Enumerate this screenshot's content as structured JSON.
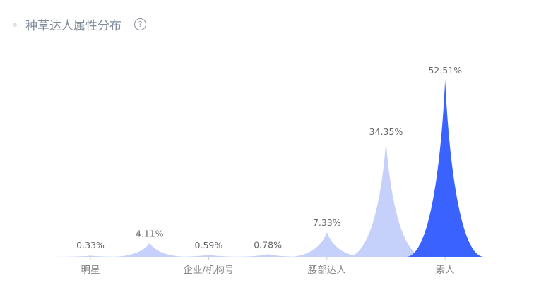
{
  "header": {
    "title": "种草达人属性分布",
    "help_icon": "question-circle-icon"
  },
  "chart_data": {
    "type": "pictorial-bar",
    "title": "种草达人属性分布",
    "categories": [
      "明星",
      "",
      "企业/机构号",
      "",
      "腰部达人",
      "",
      "素人"
    ],
    "values": [
      0.33,
      4.11,
      0.59,
      0.78,
      7.33,
      34.35,
      52.51
    ],
    "labels": [
      "0.33%",
      "4.11%",
      "0.59%",
      "0.78%",
      "7.33%",
      "34.35%",
      "52.51%"
    ],
    "unit": "%",
    "ylim": [
      0,
      52.51
    ],
    "grid": false,
    "colors": {
      "default": "#c5d0fb",
      "highlight": "#3a62ff",
      "axis": "#c8ccd2",
      "label": "#666666",
      "tick_label": "#888888"
    },
    "highlight_index": 6
  }
}
